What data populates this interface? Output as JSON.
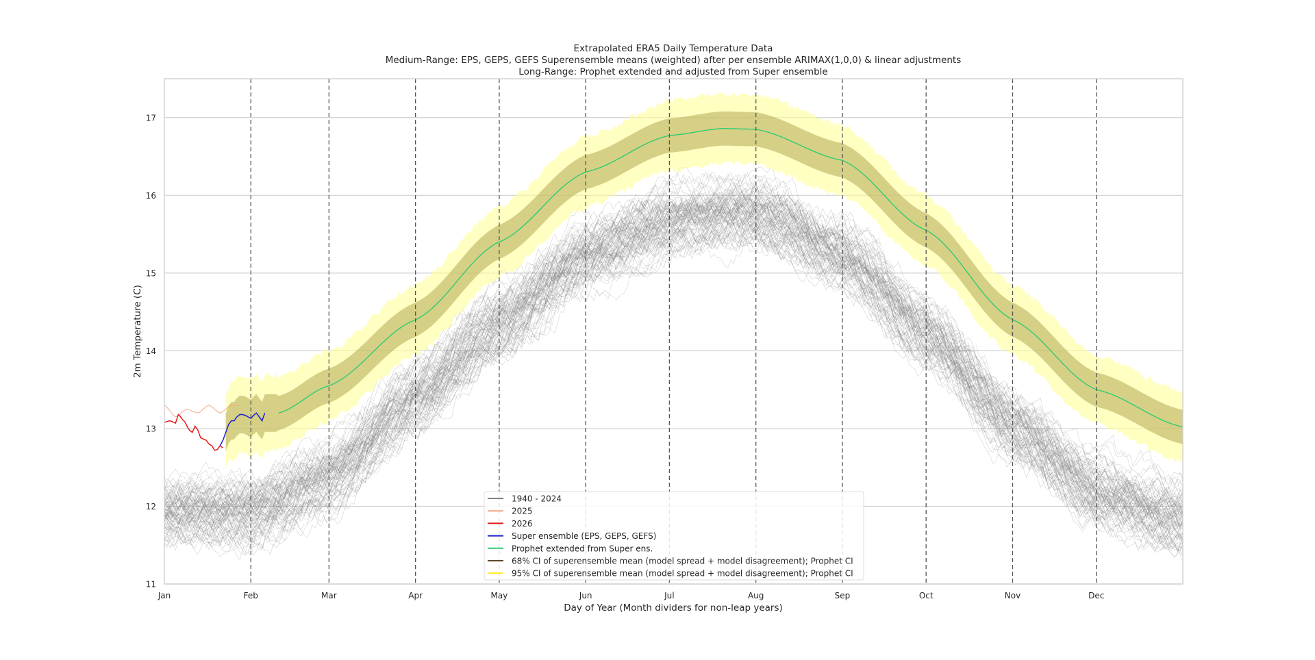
{
  "chart_data": {
    "type": "line",
    "title": [
      "Extrapolated ERA5 Daily Temperature Data",
      "Medium-Range: EPS, GEPS, GEFS Superensemble means (weighted) after per ensemble ARIMAX(1,0,0) & linear adjustments",
      "Long-Range: Prophet extended and adjusted from Super ensemble"
    ],
    "xlabel": "Day of Year (Month dividers for non-leap years)",
    "ylabel": "2m Temperature (C)",
    "xlim": [
      0,
      365
    ],
    "ylim": [
      11,
      17.5
    ],
    "yticks": [
      11,
      12,
      13,
      14,
      15,
      16,
      17
    ],
    "xticks": [
      {
        "day": 0,
        "label": "Jan"
      },
      {
        "day": 31,
        "label": "Feb"
      },
      {
        "day": 59,
        "label": "Mar"
      },
      {
        "day": 90,
        "label": "Apr"
      },
      {
        "day": 120,
        "label": "May"
      },
      {
        "day": 151,
        "label": "Jun"
      },
      {
        "day": 181,
        "label": "Jul"
      },
      {
        "day": 212,
        "label": "Aug"
      },
      {
        "day": 243,
        "label": "Sep"
      },
      {
        "day": 273,
        "label": "Oct"
      },
      {
        "day": 304,
        "label": "Nov"
      },
      {
        "day": 334,
        "label": "Dec"
      }
    ],
    "month_dividers": [
      31,
      59,
      90,
      120,
      151,
      181,
      212,
      243,
      273,
      304,
      334
    ],
    "grid": true,
    "legend_position": "bottom-center",
    "colors": {
      "historical": "#808080",
      "y2025": "#f4a582",
      "y2026": "#e41a1c",
      "super": "#1f1fd0",
      "prophet": "#2ecc71",
      "ci68": "#b5aa55",
      "ci95": "#ffff99"
    },
    "series": [
      {
        "name": "1940 - 2024",
        "kind": "historical_ensemble",
        "years": 85,
        "climatology_days": [
          0,
          31,
          59,
          90,
          120,
          151,
          181,
          212,
          243,
          273,
          304,
          334,
          365
        ],
        "climatology_mean": [
          11.95,
          11.95,
          12.4,
          13.4,
          14.35,
          15.25,
          15.7,
          15.8,
          15.25,
          14.25,
          13.05,
          12.2,
          11.85
        ],
        "spread": 0.4
      },
      {
        "name": "2025",
        "x": [
          0,
          4,
          8,
          12,
          16,
          20,
          24,
          27
        ],
        "y": [
          13.3,
          13.15,
          13.25,
          13.2,
          13.3,
          13.2,
          13.3,
          13.3
        ]
      },
      {
        "name": "2026",
        "x": [
          0,
          2,
          4,
          5,
          7,
          9,
          10,
          11,
          12,
          13,
          15,
          16,
          17,
          18,
          19,
          20,
          21
        ],
        "y": [
          13.08,
          13.1,
          13.07,
          13.18,
          13.1,
          12.98,
          12.95,
          13.03,
          12.98,
          12.88,
          12.85,
          12.8,
          12.78,
          12.72,
          12.73,
          12.78,
          12.75
        ]
      },
      {
        "name": "Super ensemble (EPS, GEPS, GEFS)",
        "x": [
          20,
          21,
          22,
          23,
          24,
          25,
          26,
          27,
          28,
          29,
          30,
          31,
          32,
          33,
          34,
          35,
          36
        ],
        "y": [
          12.78,
          12.85,
          12.95,
          13.05,
          13.1,
          13.1,
          13.15,
          13.18,
          13.18,
          13.17,
          13.15,
          13.13,
          13.17,
          13.2,
          13.15,
          13.1,
          13.2
        ]
      },
      {
        "name": "Prophet extended from Super ens.",
        "x": [
          41,
          59,
          90,
          120,
          151,
          181,
          200,
          212,
          243,
          273,
          304,
          334,
          365
        ],
        "y": [
          13.2,
          13.55,
          14.4,
          15.4,
          16.3,
          16.77,
          16.86,
          16.85,
          16.45,
          15.55,
          14.4,
          13.5,
          13.02
        ]
      },
      {
        "name": "68% CI of superensemble mean (model spread + model disagreement); Prophet CI",
        "half_width": 0.22
      },
      {
        "name": "95% CI of superensemble mean (model spread + model disagreement); Prophet CI",
        "half_width": 0.45
      }
    ]
  }
}
